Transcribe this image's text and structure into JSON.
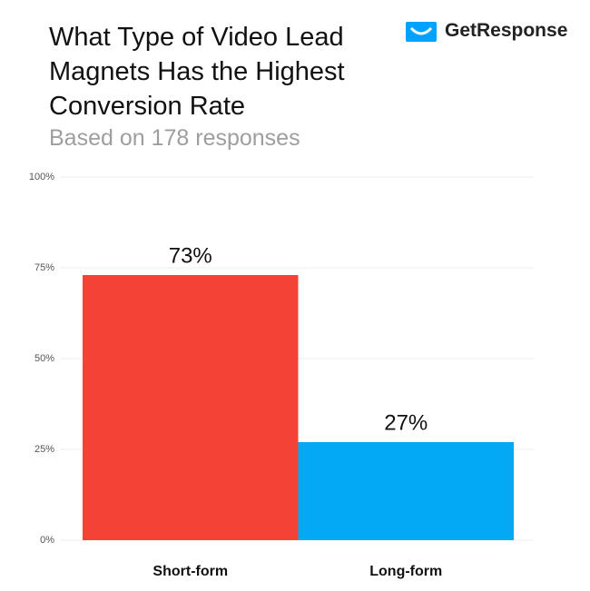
{
  "chart_data": {
    "type": "bar",
    "title": "What Type of Video Lead Magnets Has the Highest Conversion Rate",
    "subtitle": "Based on 178 responses",
    "logo": "GetResponse",
    "categories": [
      "Short-form",
      "Long-form"
    ],
    "values": [
      73,
      27
    ],
    "value_labels": [
      "73%",
      "27%"
    ],
    "colors": [
      "#f44336",
      "#03a9f4"
    ],
    "ylim": [
      0,
      100
    ],
    "yticks": [
      {
        "value": 0,
        "label": "0%"
      },
      {
        "value": 25,
        "label": "25%"
      },
      {
        "value": 50,
        "label": "50%"
      },
      {
        "value": 75,
        "label": "75%"
      },
      {
        "value": 100,
        "label": "100%"
      }
    ],
    "grid": true
  }
}
